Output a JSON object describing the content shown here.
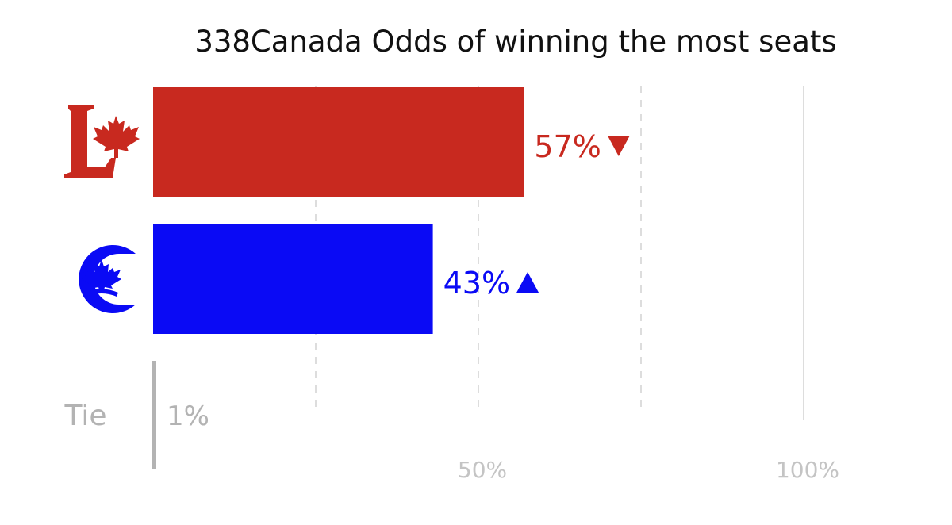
{
  "chart_data": {
    "type": "bar",
    "orientation": "horizontal",
    "title": "338Canada Odds of winning the most seats",
    "categories": [
      "Liberal",
      "Conservative",
      "Tie"
    ],
    "series": [
      {
        "name": "Odds of winning the most seats",
        "values": [
          57,
          43,
          1
        ]
      }
    ],
    "data_labels": [
      "57%",
      "43%",
      "1%"
    ],
    "trend": [
      "down",
      "up",
      null
    ],
    "row_labels": [
      "",
      "",
      "Tie"
    ],
    "xlim": [
      0,
      100
    ],
    "xticks": [
      50,
      100
    ],
    "xtick_labels": [
      "50%",
      "100%"
    ],
    "gridlines_dashed": [
      25,
      50,
      75
    ],
    "gridlines_solid": [
      100
    ],
    "legend": "none",
    "colors": {
      "liberal": "#c8291f",
      "conservative": "#0a0af5",
      "tie": "#b3b3b3",
      "grid": "#dddddd",
      "tick_label": "#c4c4c4",
      "title": "#111111"
    },
    "icons": [
      "liberal-logo-icon",
      "conservative-logo-icon",
      null
    ]
  }
}
